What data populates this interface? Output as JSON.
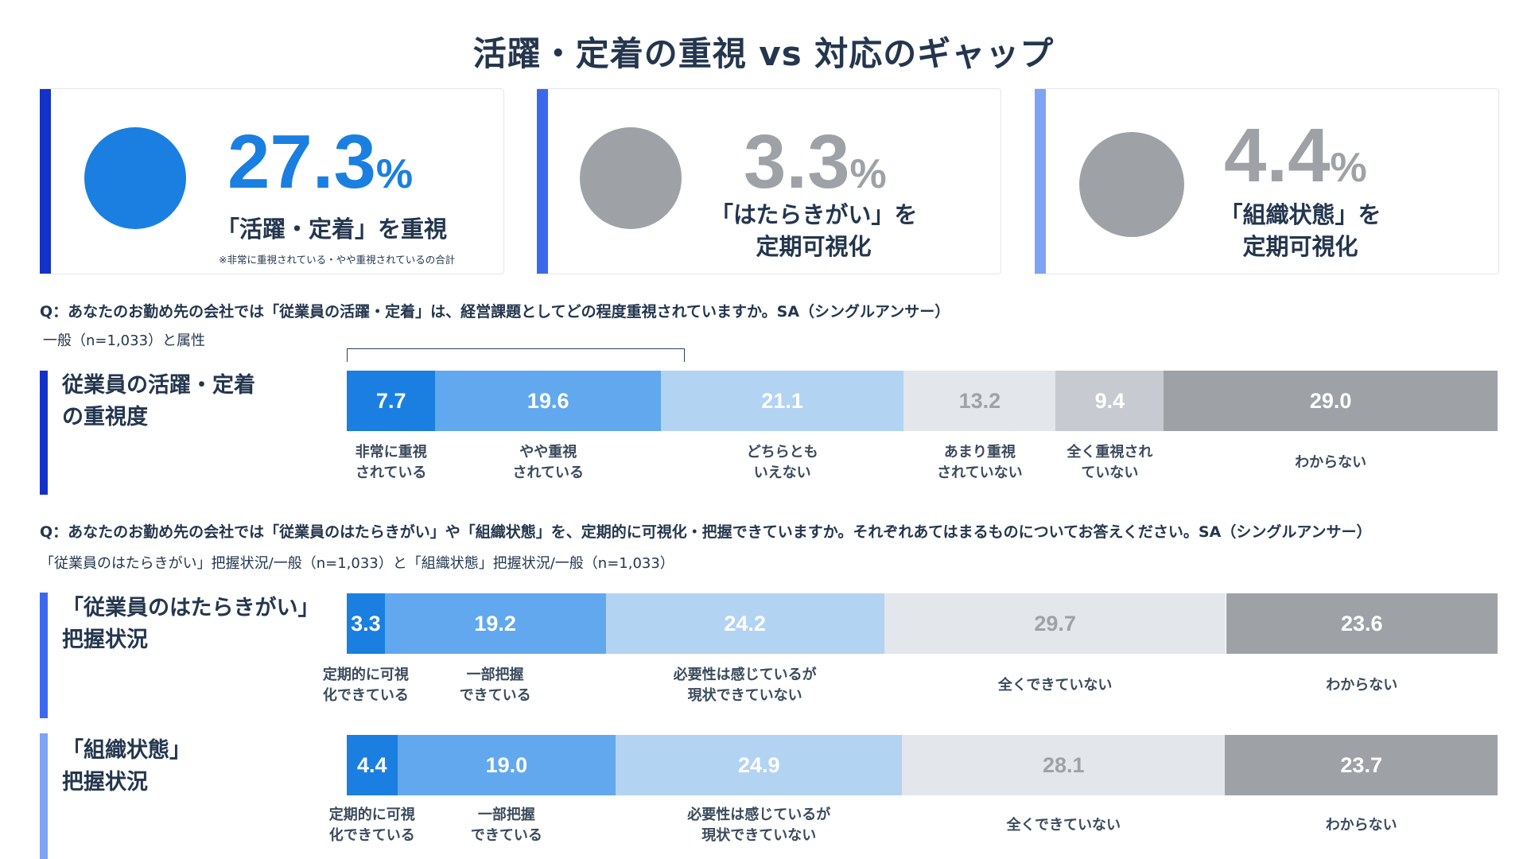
{
  "title": "活躍・定着の重視 vs 対応のギャップ",
  "colors": {
    "blue_dark": "#1a7fe0",
    "blue_mid": "#62a8ee",
    "blue_light": "#b3d3f3",
    "gray_light": "#e3e6ea",
    "gray_mid": "#c7cbd1",
    "gray_dark": "#9ea2a7",
    "accent1": "#1432c8",
    "accent2": "#3c68ee",
    "accent3": "#7ea4f3"
  },
  "cards": [
    {
      "value": "27.3",
      "unit": "%",
      "label_line1": "「活躍・定着」を重視",
      "label_line2": "",
      "note": "※非常に重視されている・やや重視されているの合計"
    },
    {
      "value": "3.3",
      "unit": "%",
      "label_line1": "「はたらきがい」を",
      "label_line2": "定期可視化",
      "note": ""
    },
    {
      "value": "4.4",
      "unit": "%",
      "label_line1": "「組織状態」を",
      "label_line2": "定期可視化",
      "note": ""
    }
  ],
  "section1": {
    "question": "Q：あなたのお勤め先の会社では「従業員の活躍・定着」は、経営課題としてどの程度重視されていますか。SA（シングルアンサー）",
    "subtitle": "一般（n=1,033）と属性"
  },
  "section2": {
    "question": "Q：あなたのお勤め先の会社では「従業員のはたらきがい」や「組織状態」を、定期的に可視化・把握できていますか。それぞれあてはまるものについてお答えください。SA（シングルアンサー）",
    "subtitle": "「従業員のはたらきがい」把握状況/一般（n=1,033）と「組織状態」把握状況/一般（n=1,033）"
  },
  "chart_data": [
    {
      "type": "bar",
      "stacked": true,
      "orientation": "horizontal",
      "row_label": [
        "従業員の活躍・定着",
        "の重視度"
      ],
      "categories": [
        [
          "非常に重視",
          "されている"
        ],
        [
          "やや重視",
          "されている"
        ],
        [
          "どちらとも",
          "いえない"
        ],
        [
          "あまり重視",
          "されていない"
        ],
        [
          "全く重視され",
          "ていない"
        ],
        [
          "わからない"
        ]
      ],
      "values": [
        7.7,
        19.6,
        21.1,
        13.2,
        9.4,
        29.0
      ],
      "value_labels": [
        "7.7",
        "19.6",
        "21.1",
        "13.2",
        "9.4",
        "29.0"
      ]
    },
    {
      "type": "bar",
      "stacked": true,
      "orientation": "horizontal",
      "row_label": [
        "「従業員のはたらきがい」",
        "把握状況"
      ],
      "categories": [
        [
          "定期的に可視",
          "化できている"
        ],
        [
          "一部把握",
          "できている"
        ],
        [
          "必要性は感じているが",
          "現状できていない"
        ],
        [
          "全くできていない"
        ],
        [
          "わからない"
        ]
      ],
      "values": [
        3.3,
        19.2,
        24.2,
        29.7,
        23.6
      ],
      "value_labels": [
        "3.3",
        "19.2",
        "24.2",
        "29.7",
        "23.6"
      ]
    },
    {
      "type": "bar",
      "stacked": true,
      "orientation": "horizontal",
      "row_label": [
        "「組織状態」",
        "把握状況"
      ],
      "categories": [
        [
          "定期的に可視",
          "化できている"
        ],
        [
          "一部把握",
          "できている"
        ],
        [
          "必要性は感じているが",
          "現状できていない"
        ],
        [
          "全くできていない"
        ],
        [
          "わからない"
        ]
      ],
      "values": [
        4.4,
        19.0,
        24.9,
        28.1,
        23.7
      ],
      "value_labels": [
        "4.4",
        "19.0",
        "24.9",
        "28.1",
        "23.7"
      ]
    }
  ]
}
